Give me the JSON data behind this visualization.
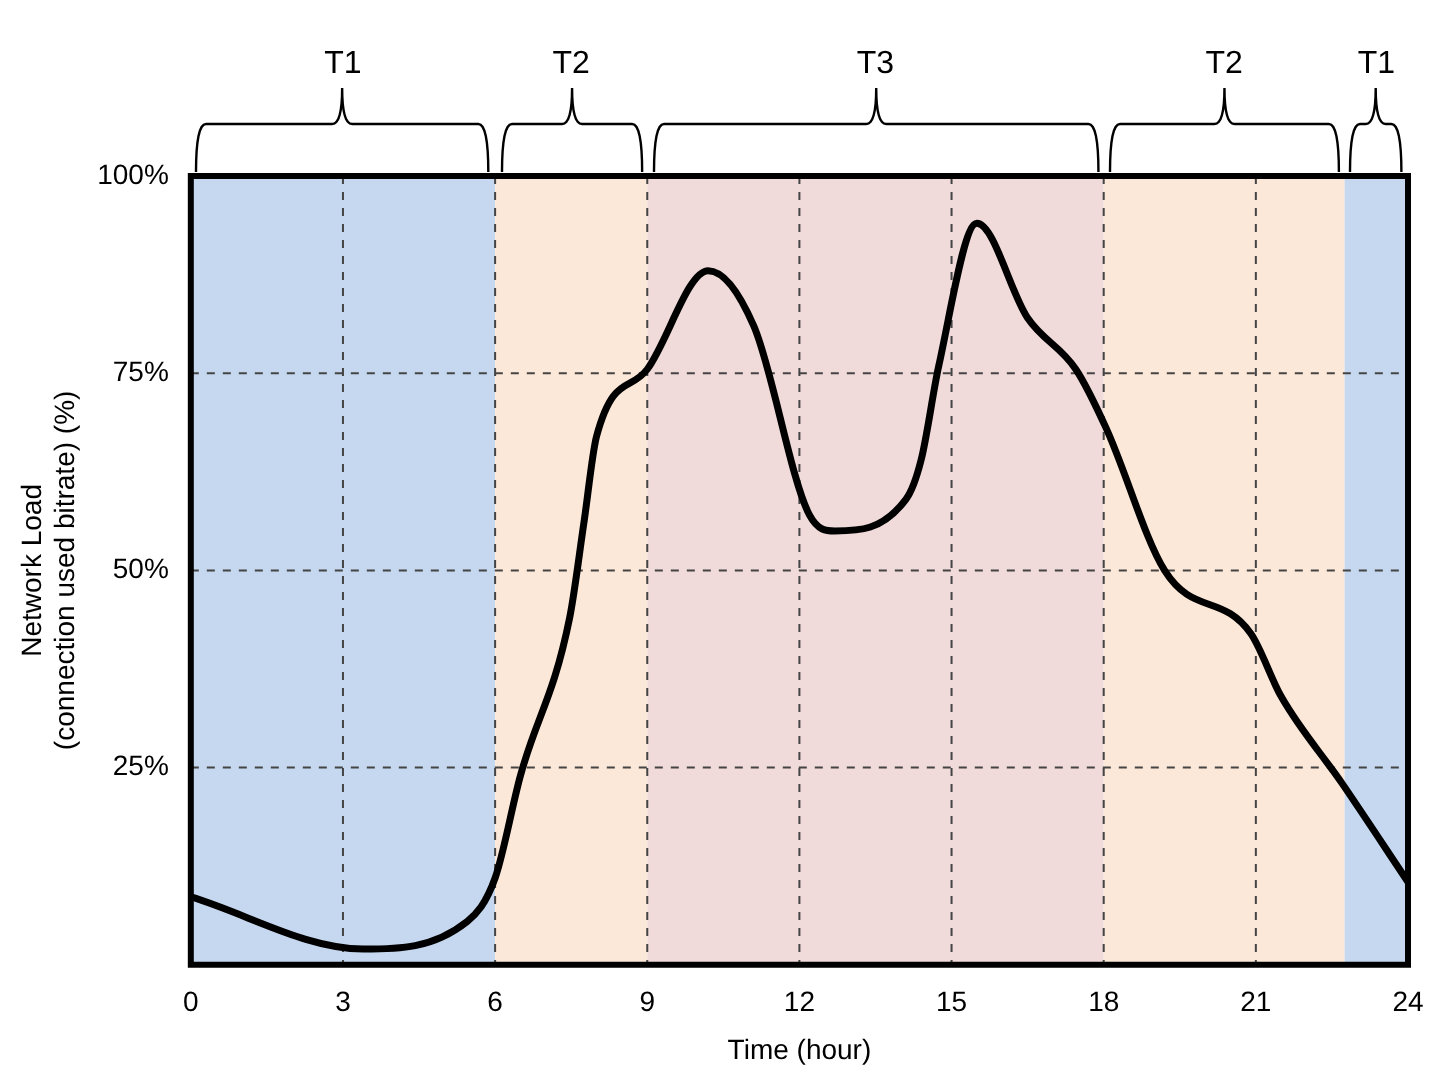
{
  "chart_data": {
    "type": "line",
    "xlabel": "Time (hour)",
    "ylabel": "Network Load\n(connection used bitrate) (%)",
    "x": [
      0,
      3.4,
      5.45,
      6,
      6.5,
      7.47,
      7.75,
      8,
      9,
      10.2,
      11.1,
      12.2,
      12.7,
      14.1,
      14.4,
      14.75,
      15.5,
      16.5,
      17.45,
      18.05,
      19.2,
      20.9,
      21.5,
      22.7,
      24
    ],
    "series": [
      {
        "color": "#000000",
        "values": [
          8.6,
          2,
          5.5,
          11,
          24,
          44,
          56,
          67,
          75.5,
          88,
          81,
          57,
          55,
          59,
          64,
          76,
          94,
          82,
          75.5,
          68,
          50,
          42,
          34,
          23,
          10.5
        ]
      }
    ],
    "xlim": [
      0,
      24
    ],
    "xticks": [
      0,
      3,
      6,
      9,
      12,
      15,
      18,
      21,
      24
    ],
    "ylim": [
      0,
      100
    ],
    "yticks": [
      {
        "value": 0,
        "label": null
      },
      {
        "value": 25,
        "label": "25%"
      },
      {
        "value": 50,
        "label": "50%"
      },
      {
        "value": 75,
        "label": "75%"
      },
      {
        "value": 100,
        "label": "100%"
      }
    ],
    "grid": true,
    "line_style": "solid",
    "bands": [
      {
        "axis": "x",
        "from": 0,
        "to": 6,
        "label": "T1",
        "color": "#c5d8ef"
      },
      {
        "axis": "x",
        "from": 6,
        "to": 9,
        "label": "T2",
        "color": "#fce8d9"
      },
      {
        "axis": "x",
        "from": 9,
        "to": 18,
        "label": "T3",
        "color": "#f0dada"
      },
      {
        "axis": "x",
        "from": 18,
        "to": 22.75,
        "label": "T2",
        "color": "#fce8d9"
      },
      {
        "axis": "x",
        "from": 22.75,
        "to": 24,
        "label": "T1",
        "color": "#c5d8ef"
      }
    ]
  }
}
